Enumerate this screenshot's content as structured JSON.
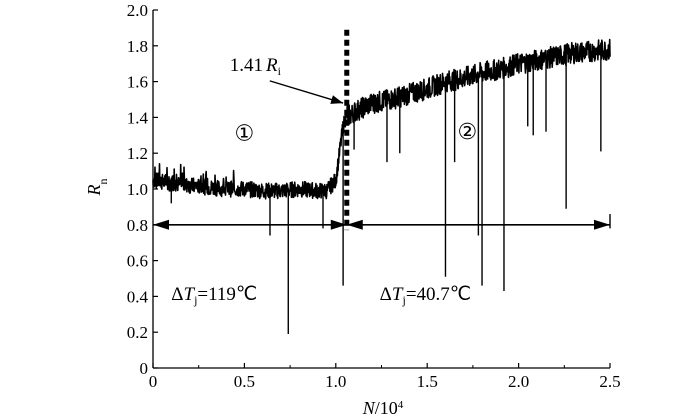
{
  "chart_data": {
    "type": "line",
    "xlabel": {
      "main": "N",
      "suffix": "/10",
      "exp": "4"
    },
    "ylabel": {
      "main": "R",
      "sub": "n"
    },
    "xlim": [
      0,
      2.5
    ],
    "ylim": [
      0,
      2.0
    ],
    "xticks": [
      "0",
      "0.5",
      "1.0",
      "1.5",
      "2.0",
      "2.5"
    ],
    "yticks": [
      "0",
      "0.2",
      "0.4",
      "0.6",
      "0.8",
      "1.0",
      "1.2",
      "1.4",
      "1.6",
      "1.8",
      "2.0"
    ],
    "series": [
      {
        "color": "#000000",
        "x": [
          0,
          0.05,
          0.1,
          0.2,
          0.3,
          0.4,
          0.5,
          0.6,
          0.7,
          0.8,
          0.9,
          0.95,
          1.0,
          1.02,
          1.04,
          1.06,
          1.08,
          1.1,
          1.2,
          1.3,
          1.4,
          1.5,
          1.6,
          1.7,
          1.8,
          1.9,
          2.0,
          2.1,
          2.2,
          2.3,
          2.4,
          2.5
        ],
        "y": [
          1.05,
          1.04,
          1.03,
          1.02,
          1.01,
          1.0,
          1.0,
          0.99,
          0.99,
          1.0,
          0.99,
          0.99,
          1.05,
          1.2,
          1.35,
          1.42,
          1.41,
          1.43,
          1.48,
          1.5,
          1.53,
          1.56,
          1.6,
          1.62,
          1.65,
          1.67,
          1.7,
          1.72,
          1.74,
          1.76,
          1.77,
          1.78
        ]
      }
    ],
    "spikes": [
      {
        "x": 0.1,
        "y": 0.92
      },
      {
        "x": 0.64,
        "y": 0.74
      },
      {
        "x": 0.74,
        "y": 0.19
      },
      {
        "x": 0.93,
        "y": 0.78
      },
      {
        "x": 1.04,
        "y": 0.46
      },
      {
        "x": 1.1,
        "y": 1.22
      },
      {
        "x": 1.28,
        "y": 1.15
      },
      {
        "x": 1.35,
        "y": 1.2
      },
      {
        "x": 1.6,
        "y": 0.51
      },
      {
        "x": 1.65,
        "y": 1.15
      },
      {
        "x": 1.78,
        "y": 0.74
      },
      {
        "x": 1.8,
        "y": 0.46
      },
      {
        "x": 1.92,
        "y": 0.43
      },
      {
        "x": 2.05,
        "y": 1.35
      },
      {
        "x": 2.08,
        "y": 1.3
      },
      {
        "x": 2.15,
        "y": 1.32
      },
      {
        "x": 2.26,
        "y": 0.89
      },
      {
        "x": 2.45,
        "y": 1.21
      }
    ],
    "divider": {
      "x": 1.06
    },
    "regions": [
      {
        "label": "①",
        "label_x": 0.5,
        "label_y": 1.27
      },
      {
        "label": "②",
        "label_x": 1.72,
        "label_y": 1.28
      }
    ],
    "arrows": [
      {
        "from": 0,
        "to": 1.06,
        "y": 0.8
      },
      {
        "from": 1.06,
        "to": 2.5,
        "y": 0.8
      }
    ],
    "annotations": {
      "peak": {
        "value": "1.41",
        "symbol": "R",
        "sub": "i",
        "text_x": 0.42,
        "text_y": 1.66,
        "target_x": 1.04,
        "target_y": 1.48
      },
      "dt_left": {
        "prefix": "Δ",
        "symbol": "T",
        "sub": "j",
        "value": "=119℃",
        "text_x": 0.1,
        "text_y": 0.38
      },
      "dt_right": {
        "prefix": "Δ",
        "symbol": "T",
        "sub": "j",
        "value": "=40.7℃",
        "text_x": 1.24,
        "text_y": 0.38
      }
    },
    "grid": false
  }
}
